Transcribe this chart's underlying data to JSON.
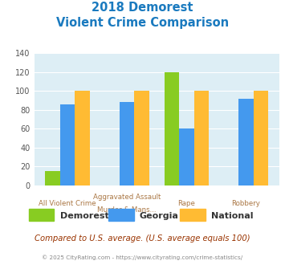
{
  "title_line1": "2018 Demorest",
  "title_line2": "Violent Crime Comparison",
  "title_color": "#1a7abf",
  "cat_labels_top": [
    "",
    "Aggravated Assault",
    "",
    ""
  ],
  "cat_labels_bot": [
    "All Violent Crime",
    "Murder & Mans...",
    "Rape",
    "Robbery"
  ],
  "groups": [
    "Demorest",
    "Georgia",
    "National"
  ],
  "group_colors": [
    "#88cc22",
    "#4499ee",
    "#ffbb33"
  ],
  "values": [
    [
      15,
      86,
      100
    ],
    [
      0,
      88,
      100
    ],
    [
      120,
      60,
      100
    ],
    [
      0,
      92,
      100
    ]
  ],
  "ylim": [
    0,
    140
  ],
  "yticks": [
    0,
    20,
    40,
    60,
    80,
    100,
    120,
    140
  ],
  "plot_bg_color": "#ddeef5",
  "footer_text": "Compared to U.S. average. (U.S. average equals 100)",
  "footer_color": "#993300",
  "copyright_text": "© 2025 CityRating.com - https://www.cityrating.com/crime-statistics/",
  "copyright_color": "#888888",
  "bar_width": 0.25
}
